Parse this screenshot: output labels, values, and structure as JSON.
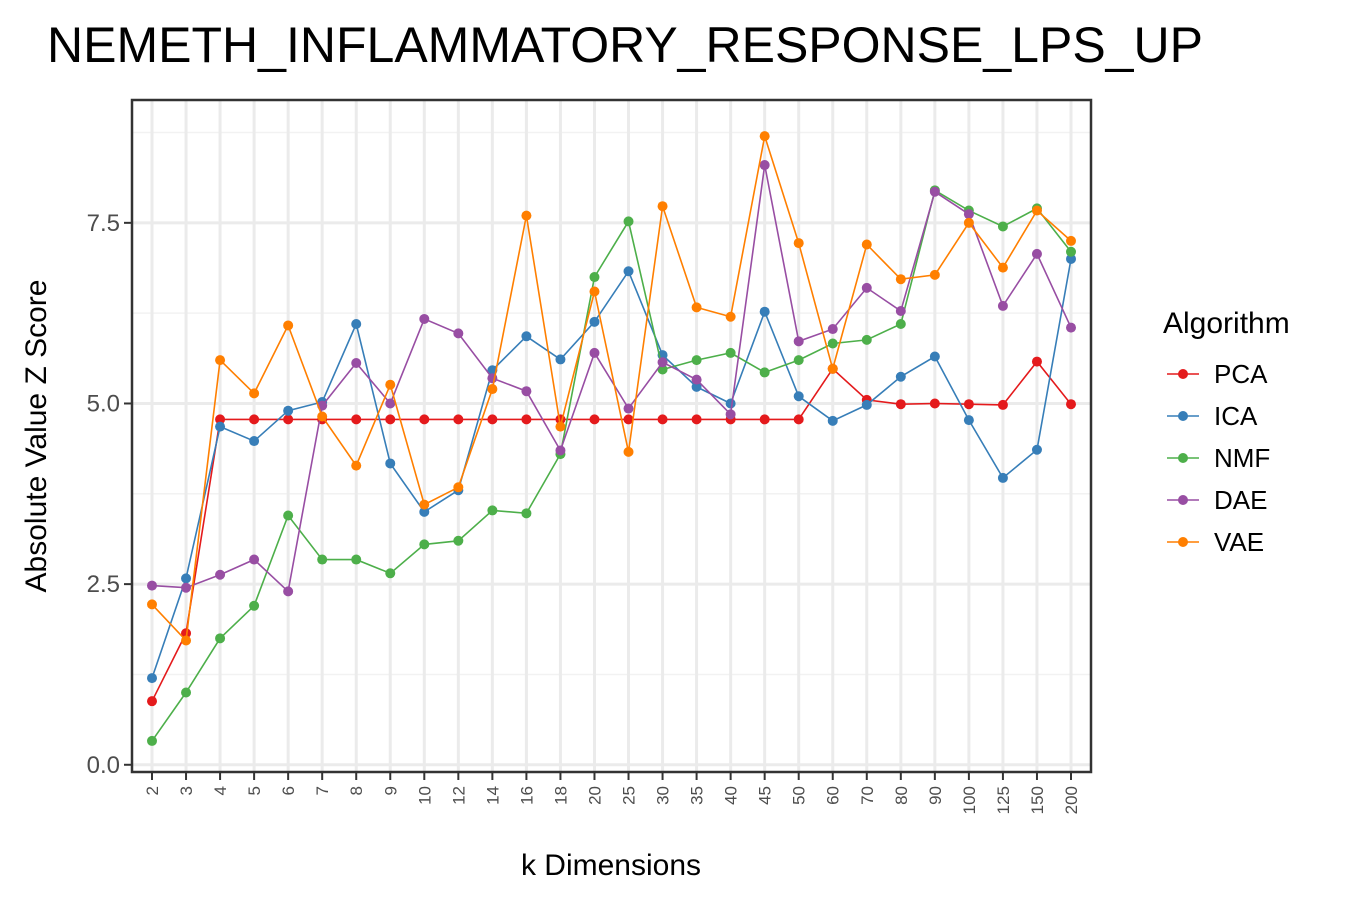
{
  "chart_data": {
    "type": "line",
    "title": "NEMETH_INFLAMMATORY_RESPONSE_LPS_UP",
    "xlabel": "k Dimensions",
    "ylabel": "Absolute Value Z Score",
    "categories": [
      "2",
      "3",
      "4",
      "5",
      "6",
      "7",
      "8",
      "9",
      "10",
      "12",
      "14",
      "16",
      "18",
      "20",
      "25",
      "30",
      "35",
      "40",
      "45",
      "50",
      "60",
      "70",
      "80",
      "90",
      "100",
      "125",
      "150",
      "200"
    ],
    "yticks": [
      "0.0",
      "2.5",
      "5.0",
      "7.5"
    ],
    "ylim": [
      -0.1,
      9.2
    ],
    "grid": true,
    "legend": {
      "title": "Algorithm",
      "position": "right"
    },
    "series": [
      {
        "name": "PCA",
        "color": "#e41a1c",
        "values": [
          0.88,
          1.82,
          4.78,
          4.78,
          4.78,
          4.78,
          4.78,
          4.78,
          4.78,
          4.78,
          4.78,
          4.78,
          4.78,
          4.78,
          4.78,
          4.78,
          4.78,
          4.78,
          4.78,
          4.78,
          5.48,
          5.05,
          4.99,
          5.0,
          4.99,
          4.98,
          5.58,
          4.99
        ]
      },
      {
        "name": "ICA",
        "color": "#377eb8",
        "values": [
          1.2,
          2.58,
          4.68,
          4.48,
          4.9,
          5.02,
          6.1,
          4.17,
          3.5,
          3.8,
          5.46,
          5.93,
          5.61,
          6.13,
          6.83,
          5.67,
          5.23,
          5.0,
          6.27,
          5.1,
          4.76,
          4.98,
          5.37,
          5.65,
          4.77,
          3.97,
          4.36,
          7.0
        ]
      },
      {
        "name": "NMF",
        "color": "#4daf4a",
        "values": [
          0.33,
          1.0,
          1.75,
          2.2,
          3.45,
          2.84,
          2.84,
          2.65,
          3.05,
          3.1,
          3.52,
          3.48,
          4.3,
          6.75,
          7.52,
          5.47,
          5.6,
          5.7,
          5.43,
          5.6,
          5.83,
          5.88,
          6.1,
          7.95,
          7.67,
          7.45,
          7.7,
          7.1
        ]
      },
      {
        "name": "DAE",
        "color": "#984ea3",
        "values": [
          2.48,
          2.45,
          2.63,
          2.84,
          2.4,
          4.97,
          5.56,
          5.0,
          6.17,
          5.97,
          5.35,
          5.17,
          4.35,
          5.7,
          4.93,
          5.57,
          5.33,
          4.85,
          8.3,
          5.86,
          6.03,
          6.6,
          6.28,
          7.93,
          7.62,
          6.35,
          7.07,
          6.05
        ]
      },
      {
        "name": "VAE",
        "color": "#ff7f00",
        "values": [
          2.22,
          1.72,
          5.6,
          5.14,
          6.08,
          4.82,
          4.14,
          5.26,
          3.6,
          3.84,
          5.2,
          7.6,
          4.68,
          6.55,
          4.33,
          7.73,
          6.33,
          6.2,
          8.7,
          7.22,
          5.48,
          7.2,
          6.72,
          6.78,
          7.5,
          6.88,
          7.67,
          7.25
        ]
      }
    ]
  }
}
